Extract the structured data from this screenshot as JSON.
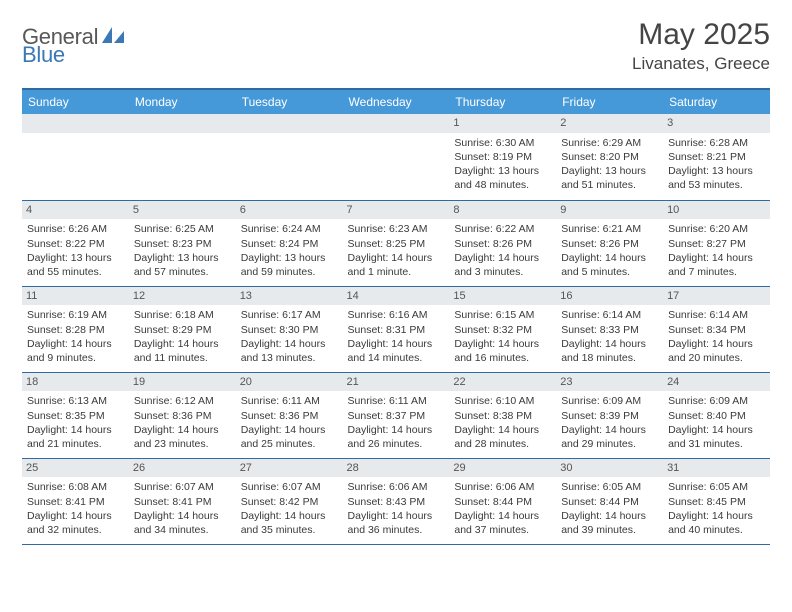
{
  "brand": {
    "name_a": "General",
    "name_b": "Blue"
  },
  "header": {
    "title": "May 2025",
    "location": "Livanates, Greece"
  },
  "columns": [
    "Sunday",
    "Monday",
    "Tuesday",
    "Wednesday",
    "Thursday",
    "Friday",
    "Saturday"
  ],
  "colors": {
    "header_bg": "#4699d9",
    "header_border": "#2f6aa3",
    "daynum_bg": "#e7eaec"
  },
  "weeks": [
    [
      null,
      null,
      null,
      null,
      {
        "n": "1",
        "sr": "6:30 AM",
        "ss": "8:19 PM",
        "dl": "13 hours and 48 minutes."
      },
      {
        "n": "2",
        "sr": "6:29 AM",
        "ss": "8:20 PM",
        "dl": "13 hours and 51 minutes."
      },
      {
        "n": "3",
        "sr": "6:28 AM",
        "ss": "8:21 PM",
        "dl": "13 hours and 53 minutes."
      }
    ],
    [
      {
        "n": "4",
        "sr": "6:26 AM",
        "ss": "8:22 PM",
        "dl": "13 hours and 55 minutes."
      },
      {
        "n": "5",
        "sr": "6:25 AM",
        "ss": "8:23 PM",
        "dl": "13 hours and 57 minutes."
      },
      {
        "n": "6",
        "sr": "6:24 AM",
        "ss": "8:24 PM",
        "dl": "13 hours and 59 minutes."
      },
      {
        "n": "7",
        "sr": "6:23 AM",
        "ss": "8:25 PM",
        "dl": "14 hours and 1 minute."
      },
      {
        "n": "8",
        "sr": "6:22 AM",
        "ss": "8:26 PM",
        "dl": "14 hours and 3 minutes."
      },
      {
        "n": "9",
        "sr": "6:21 AM",
        "ss": "8:26 PM",
        "dl": "14 hours and 5 minutes."
      },
      {
        "n": "10",
        "sr": "6:20 AM",
        "ss": "8:27 PM",
        "dl": "14 hours and 7 minutes."
      }
    ],
    [
      {
        "n": "11",
        "sr": "6:19 AM",
        "ss": "8:28 PM",
        "dl": "14 hours and 9 minutes."
      },
      {
        "n": "12",
        "sr": "6:18 AM",
        "ss": "8:29 PM",
        "dl": "14 hours and 11 minutes."
      },
      {
        "n": "13",
        "sr": "6:17 AM",
        "ss": "8:30 PM",
        "dl": "14 hours and 13 minutes."
      },
      {
        "n": "14",
        "sr": "6:16 AM",
        "ss": "8:31 PM",
        "dl": "14 hours and 14 minutes."
      },
      {
        "n": "15",
        "sr": "6:15 AM",
        "ss": "8:32 PM",
        "dl": "14 hours and 16 minutes."
      },
      {
        "n": "16",
        "sr": "6:14 AM",
        "ss": "8:33 PM",
        "dl": "14 hours and 18 minutes."
      },
      {
        "n": "17",
        "sr": "6:14 AM",
        "ss": "8:34 PM",
        "dl": "14 hours and 20 minutes."
      }
    ],
    [
      {
        "n": "18",
        "sr": "6:13 AM",
        "ss": "8:35 PM",
        "dl": "14 hours and 21 minutes."
      },
      {
        "n": "19",
        "sr": "6:12 AM",
        "ss": "8:36 PM",
        "dl": "14 hours and 23 minutes."
      },
      {
        "n": "20",
        "sr": "6:11 AM",
        "ss": "8:36 PM",
        "dl": "14 hours and 25 minutes."
      },
      {
        "n": "21",
        "sr": "6:11 AM",
        "ss": "8:37 PM",
        "dl": "14 hours and 26 minutes."
      },
      {
        "n": "22",
        "sr": "6:10 AM",
        "ss": "8:38 PM",
        "dl": "14 hours and 28 minutes."
      },
      {
        "n": "23",
        "sr": "6:09 AM",
        "ss": "8:39 PM",
        "dl": "14 hours and 29 minutes."
      },
      {
        "n": "24",
        "sr": "6:09 AM",
        "ss": "8:40 PM",
        "dl": "14 hours and 31 minutes."
      }
    ],
    [
      {
        "n": "25",
        "sr": "6:08 AM",
        "ss": "8:41 PM",
        "dl": "14 hours and 32 minutes."
      },
      {
        "n": "26",
        "sr": "6:07 AM",
        "ss": "8:41 PM",
        "dl": "14 hours and 34 minutes."
      },
      {
        "n": "27",
        "sr": "6:07 AM",
        "ss": "8:42 PM",
        "dl": "14 hours and 35 minutes."
      },
      {
        "n": "28",
        "sr": "6:06 AM",
        "ss": "8:43 PM",
        "dl": "14 hours and 36 minutes."
      },
      {
        "n": "29",
        "sr": "6:06 AM",
        "ss": "8:44 PM",
        "dl": "14 hours and 37 minutes."
      },
      {
        "n": "30",
        "sr": "6:05 AM",
        "ss": "8:44 PM",
        "dl": "14 hours and 39 minutes."
      },
      {
        "n": "31",
        "sr": "6:05 AM",
        "ss": "8:45 PM",
        "dl": "14 hours and 40 minutes."
      }
    ]
  ],
  "labels": {
    "sunrise": "Sunrise:",
    "sunset": "Sunset:",
    "daylight": "Daylight:"
  }
}
